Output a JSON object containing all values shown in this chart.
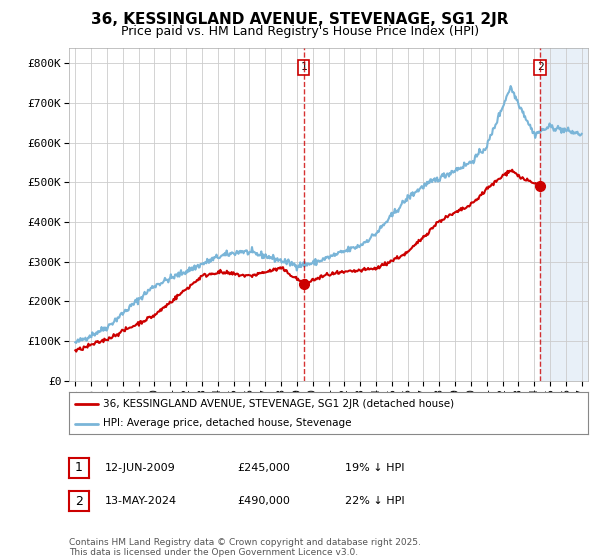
{
  "title": "36, KESSINGLAND AVENUE, STEVENAGE, SG1 2JR",
  "subtitle": "Price paid vs. HM Land Registry's House Price Index (HPI)",
  "ylabel_ticks": [
    "£0",
    "£100K",
    "£200K",
    "£300K",
    "£400K",
    "£500K",
    "£600K",
    "£700K",
    "£800K"
  ],
  "ytick_values": [
    0,
    100000,
    200000,
    300000,
    400000,
    500000,
    600000,
    700000,
    800000
  ],
  "ylim": [
    0,
    840000
  ],
  "xlim_start": 1994.6,
  "xlim_end": 2027.4,
  "hpi_color": "#7ab5d8",
  "price_color": "#cc0000",
  "marker1_date": 2009.44,
  "marker2_date": 2024.37,
  "marker1_price": 245000,
  "marker2_price": 490000,
  "marker1_label": "12-JUN-2009",
  "marker2_label": "13-MAY-2024",
  "marker1_hpi_pct": "19% ↓ HPI",
  "marker2_hpi_pct": "22% ↓ HPI",
  "legend_entry1": "36, KESSINGLAND AVENUE, STEVENAGE, SG1 2JR (detached house)",
  "legend_entry2": "HPI: Average price, detached house, Stevenage",
  "footer": "Contains HM Land Registry data © Crown copyright and database right 2025.\nThis data is licensed under the Open Government Licence v3.0.",
  "bg_color": "#ffffff",
  "grid_color": "#cccccc",
  "shade_color": "#e8f0f8",
  "title_fontsize": 11,
  "subtitle_fontsize": 9
}
